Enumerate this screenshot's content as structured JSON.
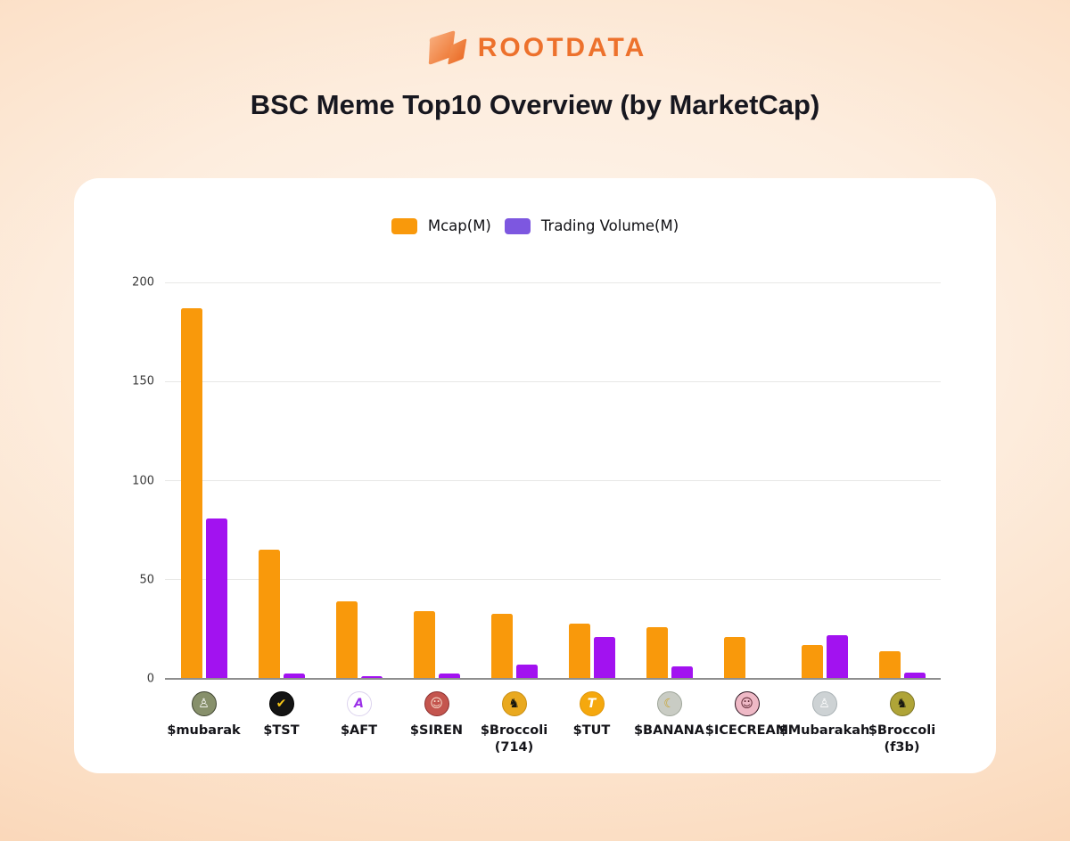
{
  "logo": {
    "text": "ROOTDATA",
    "icon": "rootdata-ribbon-icon",
    "color": "#ED712C"
  },
  "title": "BSC Meme Top10 Overview (by MarketCap)",
  "legend": [
    {
      "label": "Mcap(M)",
      "color": "#F9990B"
    },
    {
      "label": "Trading Volume(M)",
      "color": "#7D57E0"
    }
  ],
  "colors": {
    "bar_mcap": "#F9990B",
    "bar_volume": "#A212F0",
    "gridline": "#E8E8E6",
    "axis_line": "#8E8E8E",
    "card_bg": "#FFFFFF",
    "background_peach": "#F8CFAD"
  },
  "chart_data": {
    "type": "bar",
    "title": "BSC Meme Top10 Overview (by MarketCap)",
    "ylim": [
      0,
      200
    ],
    "yticks": [
      0,
      50,
      100,
      150,
      200
    ],
    "grid": true,
    "legend_position": "top-center",
    "categories": [
      "$mubarak",
      "$TST",
      "$AFT",
      "$SIREN",
      "$Broccoli (714)",
      "$TUT",
      "$BANANA",
      "$ICECREAM",
      "$Mubarakah",
      "$Broccoli (f3b)"
    ],
    "series": [
      {
        "key": "mcap",
        "name": "Mcap(M)",
        "color": "#F9990B",
        "values": [
          187,
          65,
          39,
          34,
          33,
          28,
          26,
          21,
          17,
          14
        ]
      },
      {
        "key": "volume",
        "name": "Trading Volume(M)",
        "color": "#A212F0",
        "values": [
          81,
          2.5,
          1.5,
          2.5,
          7,
          21,
          6.5,
          0.5,
          22,
          3
        ]
      }
    ],
    "x_labels": [
      {
        "label": "$mubarak",
        "sub": "",
        "icon": {
          "name": "mubarak-token-icon",
          "bg": "#87906B",
          "fg": "#FFFFFF",
          "border": "#3F4430",
          "glyph": "♙"
        }
      },
      {
        "label": "$TST",
        "sub": "",
        "icon": {
          "name": "tst-token-icon",
          "bg": "#141414",
          "fg": "#F5C518",
          "border": "#000000",
          "glyph": "✔"
        }
      },
      {
        "label": "$AFT",
        "sub": "",
        "icon": {
          "name": "aft-token-icon",
          "bg": "#FFFFFF",
          "fg": "#9B30E8",
          "border": "#DCD3EE",
          "glyph": "A"
        }
      },
      {
        "label": "$SIREN",
        "sub": "",
        "icon": {
          "name": "siren-token-icon",
          "bg": "#C4554E",
          "fg": "#F8DFCE",
          "border": "#8C2F2F",
          "glyph": "☺"
        }
      },
      {
        "label": "$Broccoli",
        "sub": "(714)",
        "icon": {
          "name": "broccoli-714-token-icon",
          "bg": "#E9A91F",
          "fg": "#181810",
          "border": "#C98E12",
          "glyph": "♞"
        }
      },
      {
        "label": "$TUT",
        "sub": "",
        "icon": {
          "name": "tut-token-icon",
          "bg": "#F5A80E",
          "fg": "#FFFFFF",
          "border": "#E09609",
          "glyph": "T"
        }
      },
      {
        "label": "$BANANA",
        "sub": "",
        "icon": {
          "name": "banana-token-icon",
          "bg": "#C9CCC4",
          "fg": "#C9A227",
          "border": "#9FA69A",
          "glyph": "☾"
        }
      },
      {
        "label": "$ICECREAM",
        "sub": "",
        "icon": {
          "name": "icecream-token-icon",
          "bg": "#EFB9C6",
          "fg": "#5A2430",
          "border": "#2E1622",
          "glyph": "☺"
        }
      },
      {
        "label": "$Mubarakah",
        "sub": "",
        "icon": {
          "name": "mubarakah-token-icon",
          "bg": "#CDD2D4",
          "fg": "#FFFFFF",
          "border": "#AAB2B5",
          "glyph": "♙"
        }
      },
      {
        "label": "$Broccoli",
        "sub": "(f3b)",
        "icon": {
          "name": "broccoli-f3b-token-icon",
          "bg": "#AFA437",
          "fg": "#1A1A12",
          "border": "#7D7526",
          "glyph": "♞"
        }
      }
    ]
  }
}
